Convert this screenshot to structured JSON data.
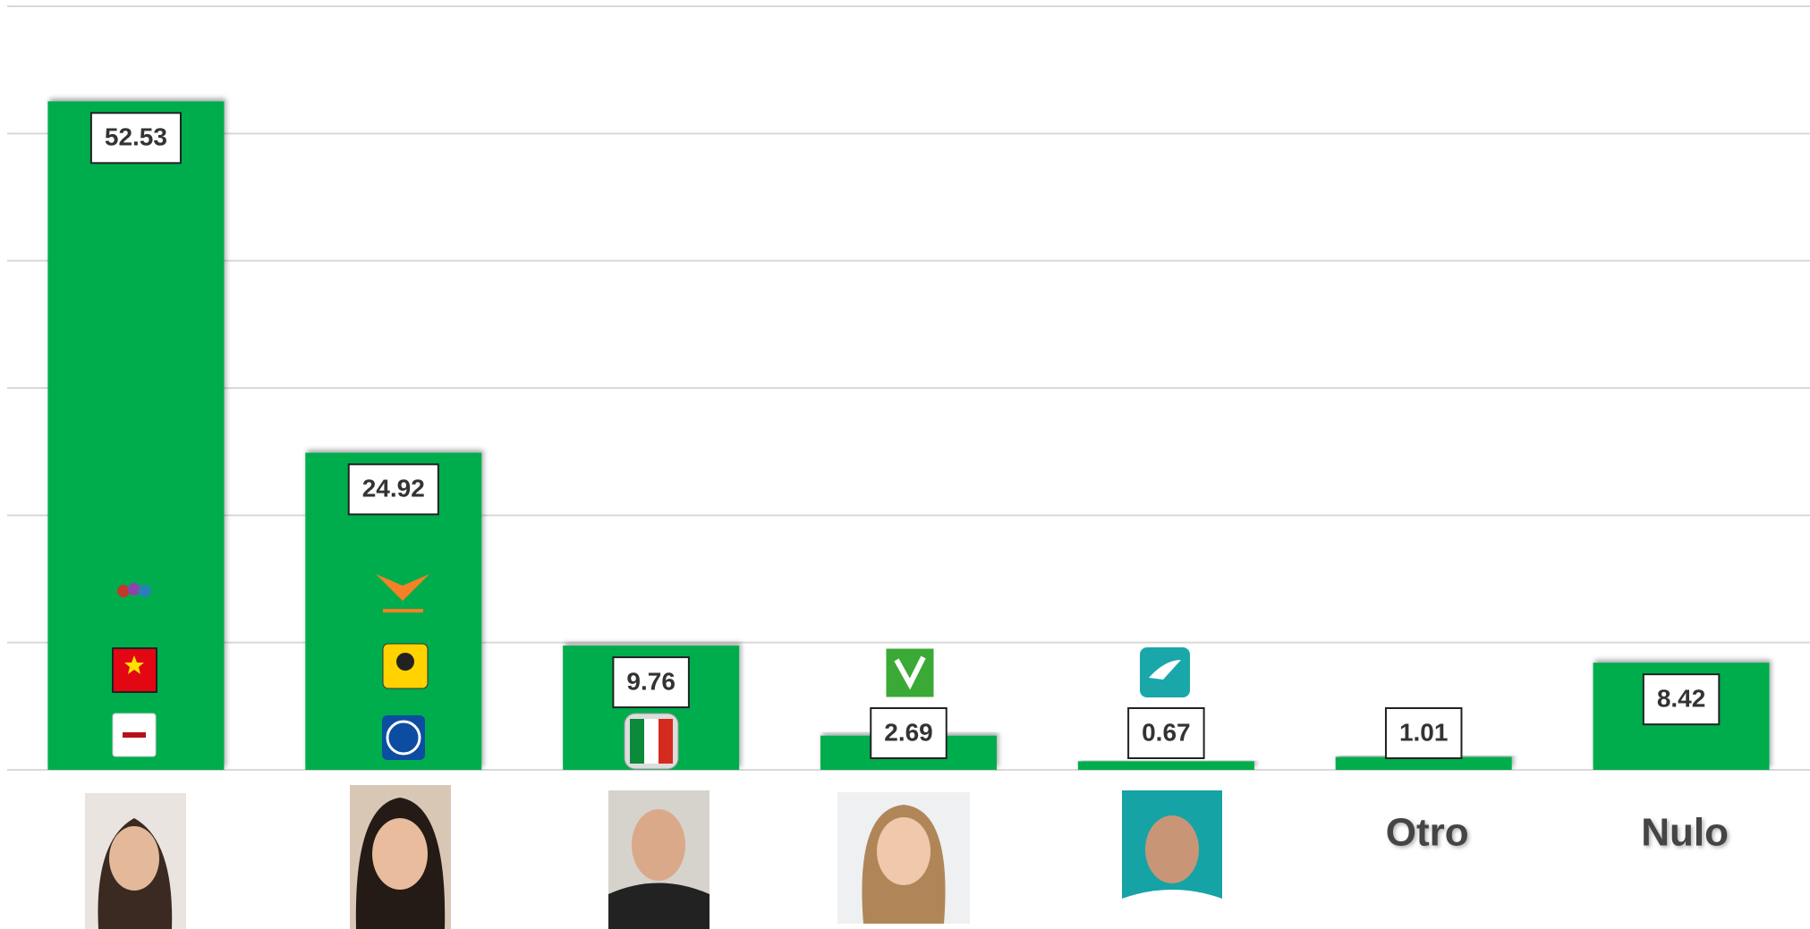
{
  "chart_data": {
    "type": "bar",
    "categories": [
      null,
      null,
      null,
      null,
      null,
      "Otro",
      "Nulo"
    ],
    "values": [
      52.53,
      24.92,
      9.76,
      2.69,
      0.67,
      1.01,
      8.42
    ],
    "color": "#00ad4e",
    "ylim": [
      0,
      60
    ],
    "yticks": [
      0,
      10,
      20,
      30,
      40,
      50,
      60
    ],
    "grid": true
  }
}
